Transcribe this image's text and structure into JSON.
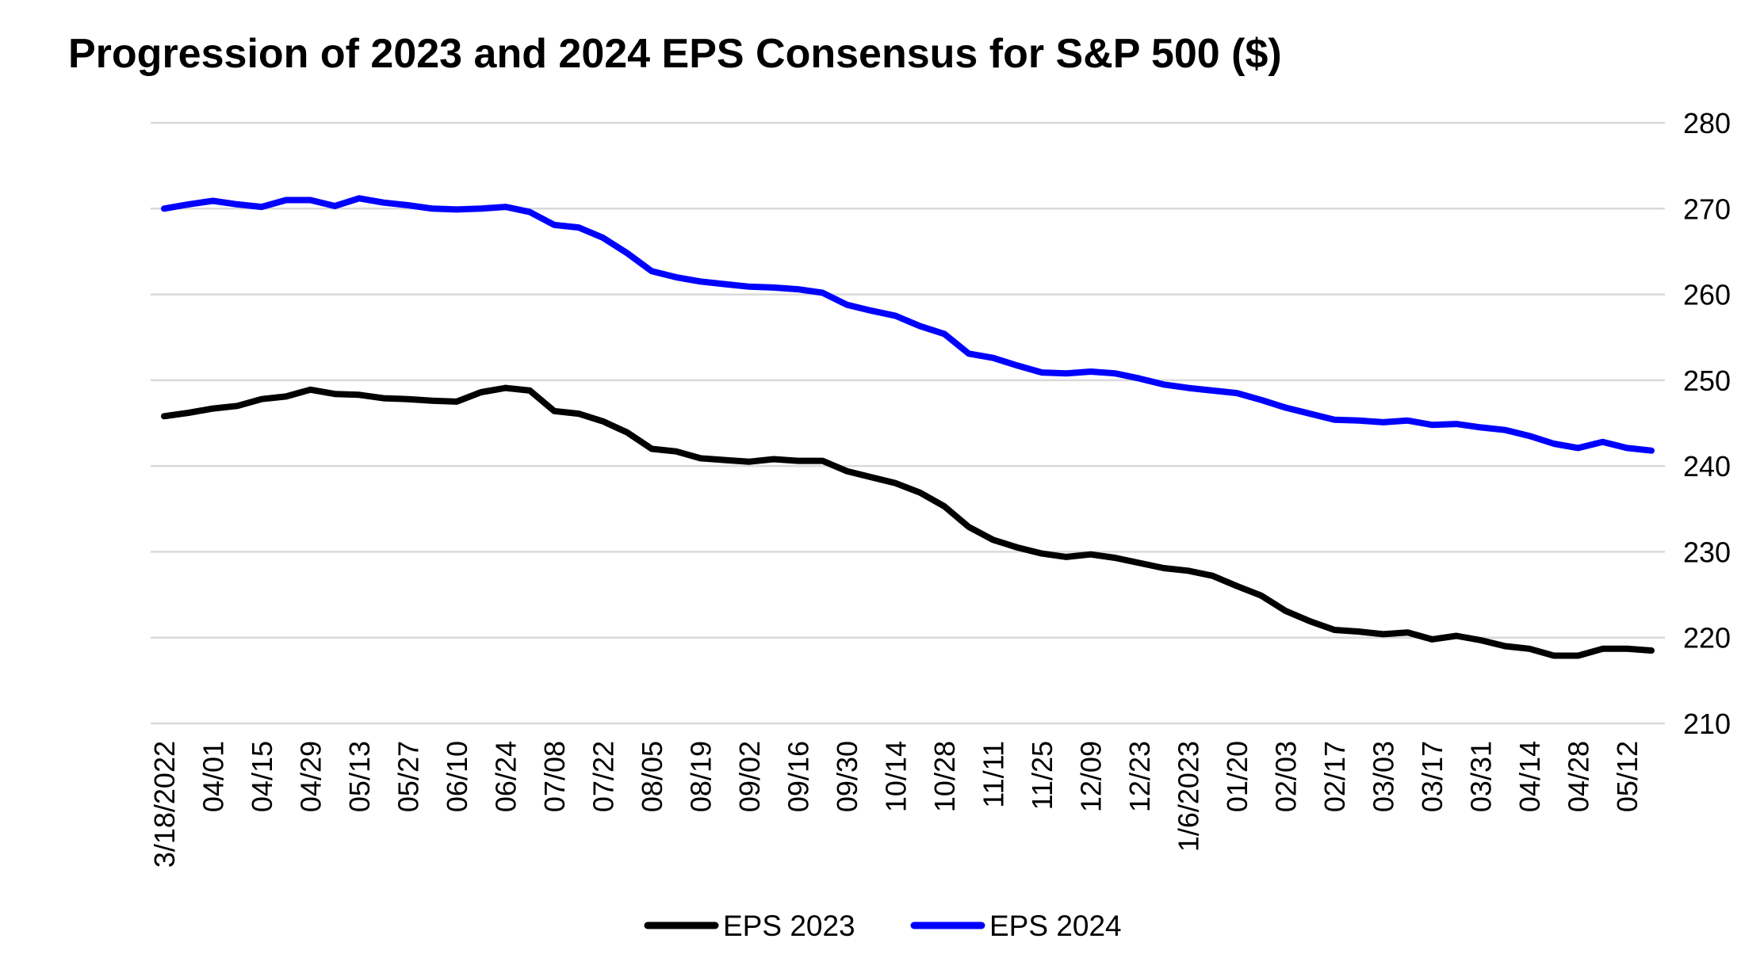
{
  "chart_data": {
    "type": "line",
    "title": "Progression of 2023 and 2024 EPS Consensus for S&P 500 ($)",
    "xlabel": "",
    "ylabel": "",
    "y_axis_side": "right",
    "ylim": [
      210,
      280
    ],
    "yticks": [
      210,
      220,
      230,
      240,
      250,
      260,
      270,
      280
    ],
    "grid": true,
    "legend_position": "bottom",
    "x_tick_labels": [
      "3/18/2022",
      "04/01",
      "04/15",
      "04/29",
      "05/13",
      "05/27",
      "06/10",
      "06/24",
      "07/08",
      "07/22",
      "08/05",
      "08/19",
      "09/02",
      "09/16",
      "09/30",
      "10/14",
      "10/28",
      "11/11",
      "11/25",
      "12/09",
      "12/23",
      "1/6/2023",
      "01/20",
      "02/03",
      "02/17",
      "03/03",
      "03/17",
      "03/31",
      "04/14",
      "04/28",
      "05/12"
    ],
    "series": [
      {
        "name": "EPS 2023",
        "color": "#000000",
        "values": [
          245.8,
          246.2,
          246.7,
          247.0,
          247.8,
          248.1,
          248.9,
          248.4,
          248.3,
          247.9,
          247.8,
          247.6,
          247.5,
          248.6,
          249.1,
          248.8,
          246.4,
          246.1,
          245.2,
          243.9,
          242.0,
          241.7,
          240.9,
          240.7,
          240.5,
          240.8,
          240.6,
          240.6,
          239.4,
          238.7,
          238.0,
          236.9,
          235.3,
          232.9,
          231.4,
          230.5,
          229.8,
          229.4,
          229.7,
          229.3,
          228.7,
          228.1,
          227.8,
          227.2,
          226.0,
          224.9,
          223.1,
          221.9,
          220.9,
          220.7,
          220.4,
          220.6,
          219.8,
          220.2,
          219.7,
          219.0,
          218.7,
          217.9,
          217.9,
          218.7,
          218.7,
          218.5
        ]
      },
      {
        "name": "EPS 2024",
        "color": "#0000ff",
        "values": [
          270.0,
          270.5,
          270.9,
          270.5,
          270.2,
          271.0,
          271.0,
          270.3,
          271.2,
          270.7,
          270.4,
          270.0,
          269.9,
          270.0,
          270.2,
          269.6,
          268.1,
          267.8,
          266.6,
          264.8,
          262.7,
          262.0,
          261.5,
          261.2,
          260.9,
          260.8,
          260.6,
          260.2,
          258.8,
          258.1,
          257.5,
          256.3,
          255.4,
          253.1,
          252.6,
          251.7,
          250.9,
          250.8,
          251.0,
          250.8,
          250.2,
          249.5,
          249.1,
          248.8,
          248.5,
          247.7,
          246.8,
          246.1,
          245.4,
          245.3,
          245.1,
          245.3,
          244.8,
          244.9,
          244.5,
          244.2,
          243.5,
          242.6,
          242.1,
          242.8,
          242.1,
          241.8
        ]
      }
    ]
  }
}
